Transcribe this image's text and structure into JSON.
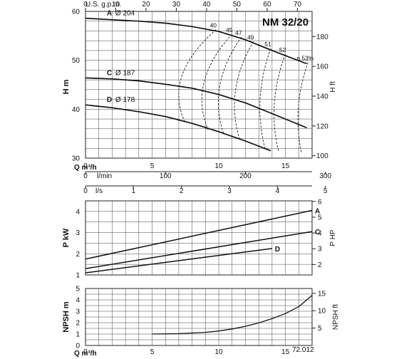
{
  "chart_data": [
    {
      "type": "line",
      "title": "NM 32/20",
      "top_scale": {
        "label": "U.S. g.p.m.",
        "ticks": [
          "0",
          "10",
          "20",
          "30",
          "40",
          "50",
          "60",
          "70"
        ]
      },
      "xlabel": "Q m³/h",
      "xlim": [
        0,
        17
      ],
      "x_ticks": [
        "0",
        "5",
        "10",
        "15"
      ],
      "ylabel": "H m",
      "ylim": [
        30,
        60
      ],
      "y_ticks": [
        "30",
        "40",
        "50",
        "60"
      ],
      "ylabel_right": "H ft",
      "y_ticks_right": [
        "100",
        "120",
        "140",
        "160",
        "180"
      ],
      "grid": true,
      "series": [
        {
          "name": "A",
          "diameter": "Ø 204",
          "x": [
            0,
            2,
            4,
            6,
            8,
            10,
            12,
            14,
            16.6
          ],
          "y": [
            58.6,
            58.3,
            58.0,
            57.6,
            56.9,
            55.9,
            54.2,
            52.0,
            49.3
          ]
        },
        {
          "name": "C",
          "diameter": "Ø 187",
          "x": [
            0,
            2,
            4,
            6,
            8,
            10,
            12,
            14,
            16.6
          ],
          "y": [
            46.4,
            46.2,
            45.8,
            45.1,
            44.3,
            43.0,
            41.3,
            39.1,
            36.2
          ]
        },
        {
          "name": "D",
          "diameter": "Ø 178",
          "x": [
            0,
            2,
            4,
            6,
            8,
            10,
            12,
            13.9
          ],
          "y": [
            40.9,
            40.3,
            39.5,
            38.5,
            37.1,
            35.4,
            33.5,
            31.5
          ]
        }
      ],
      "efficiency_labels": [
        "40",
        "45",
        "47",
        "49",
        "51",
        "52",
        "η 53%"
      ],
      "efficiency_curves": [
        {
          "label": "40",
          "x_top": 9.8,
          "x_bottom": 7.5,
          "bulge": 1.7
        },
        {
          "label": "45",
          "x_top": 11.0,
          "x_bottom": 9.2,
          "bulge": 1.5
        },
        {
          "label": "47",
          "x_top": 11.7,
          "x_bottom": 10.4,
          "bulge": 1.3
        },
        {
          "label": "49",
          "x_top": 12.6,
          "x_bottom": 11.6,
          "bulge": 1.2
        },
        {
          "label": "51",
          "x_top": 13.9,
          "x_bottom": 13.5,
          "bulge": 1.0
        },
        {
          "label": "52",
          "x_top": 15.0,
          "x_bottom": 14.5,
          "bulge": 0.9
        },
        {
          "label": "η 53%",
          "x_top": 16.7,
          "x_bottom": 16.2,
          "bulge": 0.7
        }
      ]
    },
    {
      "type": "line",
      "xlabel_flow_lmin": "l/min",
      "lmin_ticks": [
        "0",
        "100",
        "200",
        "300"
      ],
      "xlabel_flow_ls": "l/s",
      "ls_ticks": [
        "0",
        "1",
        "2",
        "3",
        "4",
        "5"
      ],
      "ylabel": "P kW",
      "ylim": [
        1,
        4.5
      ],
      "y_ticks": [
        "1",
        "2",
        "3",
        "4"
      ],
      "ylabel_right": "P HP",
      "y_ticks_right": [
        "2",
        "3",
        "4",
        "5",
        "6"
      ],
      "grid": true,
      "series": [
        {
          "name": "A",
          "x": [
            0,
            17
          ],
          "y": [
            1.75,
            4.05
          ]
        },
        {
          "name": "C",
          "x": [
            0,
            17
          ],
          "y": [
            1.3,
            3.05
          ]
        },
        {
          "name": "D",
          "x": [
            0,
            14
          ],
          "y": [
            1.1,
            2.25
          ]
        }
      ]
    },
    {
      "type": "line",
      "xlabel": "Q m³/h",
      "xlim": [
        0,
        17
      ],
      "x_ticks": [
        "0",
        "5",
        "10",
        "15"
      ],
      "ylabel": "NPSH m",
      "ylim": [
        0,
        5
      ],
      "y_ticks": [
        "0",
        "1",
        "2",
        "3",
        "4",
        "5"
      ],
      "ylabel_right": "NPSH ft",
      "y_ticks_right": [
        "5",
        "10",
        "15"
      ],
      "grid": true,
      "code": "72.012",
      "series": [
        {
          "x": [
            5,
            7,
            9,
            10,
            11,
            12,
            13,
            14,
            15,
            16,
            17
          ],
          "y": [
            1.0,
            1.04,
            1.15,
            1.27,
            1.45,
            1.68,
            1.98,
            2.35,
            2.8,
            3.4,
            4.4
          ]
        }
      ]
    }
  ]
}
